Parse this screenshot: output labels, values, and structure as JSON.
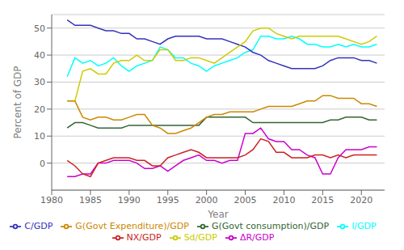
{
  "chart_data": {
    "type": "line",
    "x": [
      1982,
      1983,
      1984,
      1985,
      1986,
      1987,
      1988,
      1989,
      1990,
      1991,
      1992,
      1993,
      1994,
      1995,
      1996,
      1997,
      1998,
      1999,
      2000,
      2001,
      2002,
      2003,
      2004,
      2005,
      2006,
      2007,
      2008,
      2009,
      2010,
      2011,
      2012,
      2013,
      2014,
      2015,
      2016,
      2017,
      2018,
      2019,
      2020,
      2021,
      2022
    ],
    "series": [
      {
        "name": "I/GDP",
        "color": "#00ffff",
        "values": [
          32,
          39,
          37,
          38,
          36,
          37,
          39,
          36,
          34,
          36,
          37,
          38,
          43,
          42,
          39,
          39,
          37,
          36,
          34,
          36,
          37,
          38,
          39,
          41,
          42,
          47,
          47,
          46,
          46,
          47,
          46,
          44,
          44,
          43,
          43,
          44,
          43,
          44,
          43,
          43,
          44
        ]
      },
      {
        "name": "ΔR/GDP",
        "color": "#cc00cc",
        "values": [
          -5,
          -5,
          -4,
          -4,
          0,
          0,
          1,
          1,
          1,
          0,
          -2,
          -2,
          -1,
          -3,
          -1,
          1,
          2,
          3,
          1,
          1,
          0,
          1,
          1,
          11,
          11,
          13,
          9,
          8,
          8,
          5,
          5,
          3,
          2,
          -4,
          -4,
          2,
          5,
          5,
          5,
          6,
          6
        ]
      },
      {
        "name": "C/GDP",
        "color": "#3333bb",
        "values": [
          53,
          51,
          51,
          51,
          50,
          49,
          49,
          48,
          48,
          46,
          46,
          45,
          44,
          46,
          47,
          47,
          47,
          47,
          46,
          46,
          46,
          45,
          44,
          43,
          41,
          40,
          38,
          37,
          36,
          35,
          35,
          35,
          35,
          36,
          38,
          39,
          39,
          39,
          38,
          38,
          37
        ]
      },
      {
        "name": "G(Govt consumption)/GDP",
        "color": "#336633",
        "values": [
          13,
          15,
          15,
          14,
          13,
          13,
          13,
          13,
          14,
          14,
          14,
          14,
          14,
          14,
          14,
          14,
          14,
          14,
          17,
          17,
          17,
          17,
          17,
          17,
          15,
          15,
          15,
          15,
          15,
          15,
          15,
          15,
          15,
          15,
          16,
          16,
          17,
          17,
          17,
          16,
          16
        ]
      },
      {
        "name": "NX/GDP",
        "color": "#cc2222",
        "values": [
          1,
          -1,
          -4,
          -5,
          0,
          1,
          2,
          2,
          2,
          1,
          1,
          -1,
          -1,
          2,
          3,
          4,
          5,
          4,
          2,
          2,
          2,
          2,
          2,
          3,
          5,
          9,
          8,
          4,
          4,
          2,
          2,
          2,
          3,
          3,
          2,
          3,
          2,
          3,
          3,
          3,
          3
        ]
      },
      {
        "name": "Sd/GDP",
        "color": "#cccc00",
        "values": [
          23,
          23,
          34,
          35,
          33,
          33,
          37,
          38,
          38,
          40,
          38,
          38,
          42,
          42,
          38,
          38,
          39,
          39,
          38,
          37,
          39,
          41,
          43,
          45,
          49,
          50,
          50,
          48,
          47,
          46,
          47,
          47,
          47,
          47,
          47,
          47,
          46,
          45,
          44,
          45,
          47
        ]
      },
      {
        "name": "G(Govt Expenditure)/GDP",
        "color": "#cc8800",
        "values": [
          23,
          23,
          17,
          16,
          17,
          17,
          16,
          16,
          17,
          18,
          18,
          14,
          13,
          11,
          11,
          12,
          13,
          15,
          17,
          18,
          18,
          19,
          19,
          19,
          19,
          20,
          21,
          21,
          21,
          21,
          22,
          23,
          23,
          25,
          25,
          24,
          24,
          24,
          22,
          22,
          21
        ]
      }
    ],
    "xlabel": "Year",
    "ylabel": "Percent of GDP",
    "xlim": [
      1980,
      2023
    ],
    "ylim": [
      -10,
      55
    ],
    "xticks": [
      1980,
      1985,
      1990,
      1995,
      2000,
      2005,
      2010,
      2015,
      2020
    ],
    "yticks": [
      0,
      10,
      20,
      30,
      40,
      50
    ],
    "grid": true,
    "legend": "bottom"
  }
}
